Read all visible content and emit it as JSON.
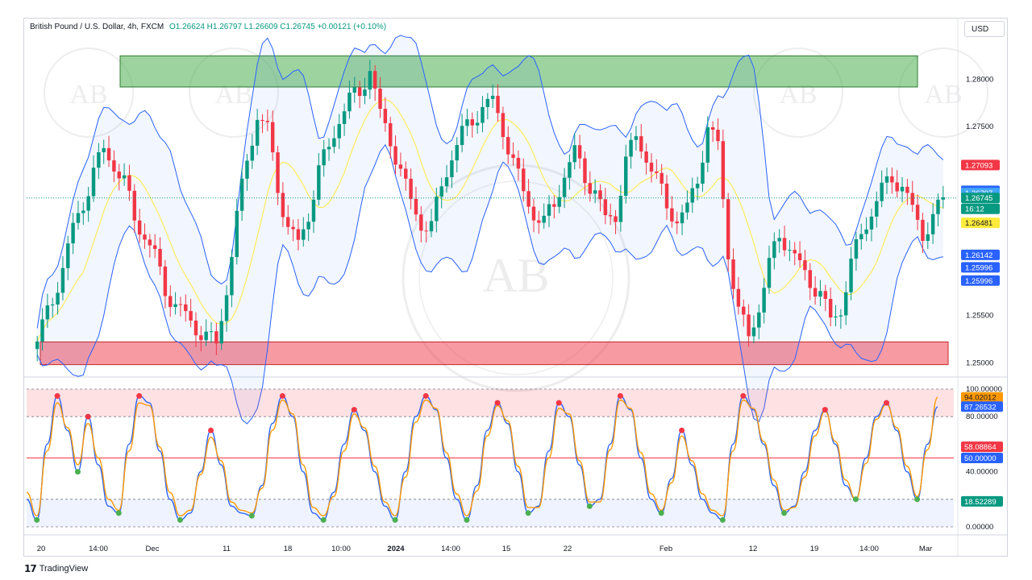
{
  "header": {
    "symbol": "British Pound / U.S. Dollar, 4h, FXCM",
    "ohlc": "O1.26624 H1.26797 L1.26609 C1.26745 +0.00121 (+0.10%)"
  },
  "currency_button": "USD",
  "footer_logo": "TradingView",
  "colors": {
    "up": "#089981",
    "down": "#f23645",
    "bb_band": "#2962ff",
    "bb_basis": "#ffeb3b",
    "stoch_k": "#2962ff",
    "stoch_d": "#ff9800",
    "supply_zone": "#4caf50",
    "demand_zone": "#f23645"
  },
  "chart_data": [
    {
      "type": "candlestick",
      "x_ticks": [
        "20",
        "14:00",
        "Dec",
        "11",
        "18",
        "10:00",
        "2024",
        "14:00",
        "15",
        "22",
        "Feb",
        "12",
        "19",
        "14:00",
        "Mar"
      ],
      "ylim": [
        1.249,
        1.285
      ],
      "y_ticks": [
        "1.28000",
        "1.27500",
        "1.25500",
        "1.25000"
      ],
      "price_badges": [
        {
          "label": "1.27093",
          "value": 1.27093,
          "bg": "#f23645",
          "fg": "#ffffff"
        },
        {
          "label": "1.26820",
          "value": 1.2682,
          "bg": "#2962ff",
          "fg": "#ffffff"
        },
        {
          "label": "1.26797",
          "value": 1.26797,
          "bg": "#42a5f5",
          "fg": "#ffffff"
        },
        {
          "label": "1.26745",
          "value": 1.26745,
          "bg": "#089981",
          "fg": "#ffffff"
        },
        {
          "label": "16:12",
          "value": 1.2663,
          "bg": "#089981",
          "fg": "#ffffff"
        },
        {
          "label": "1.26481",
          "value": 1.26481,
          "bg": "#ffeb3b",
          "fg": "#131722"
        },
        {
          "label": "1.26142",
          "value": 1.26142,
          "bg": "#2962ff",
          "fg": "#ffffff"
        },
        {
          "label": "1.25996",
          "value": 1.2601,
          "bg": "#2962ff",
          "fg": "#ffffff"
        },
        {
          "label": "1.25996",
          "value": 1.2587,
          "bg": "#2962ff",
          "fg": "#ffffff"
        }
      ],
      "zones": [
        {
          "type": "supply",
          "top": 1.2825,
          "bottom": 1.2792
        },
        {
          "type": "demand",
          "top": 1.2522,
          "bottom": 1.2498
        }
      ],
      "close_path": [
        1.251,
        1.2535,
        1.257,
        1.26,
        1.264,
        1.2672,
        1.27,
        1.2725,
        1.2712,
        1.2688,
        1.2655,
        1.2635,
        1.261,
        1.258,
        1.256,
        1.2548,
        1.254,
        1.2525,
        1.252,
        1.258,
        1.265,
        1.272,
        1.276,
        1.2745,
        1.269,
        1.264,
        1.2625,
        1.266,
        1.27,
        1.273,
        1.276,
        1.2775,
        1.279,
        1.281,
        1.276,
        1.274,
        1.27,
        1.267,
        1.265,
        1.264,
        1.269,
        1.272,
        1.274,
        1.276,
        1.277,
        1.2775,
        1.275,
        1.271,
        1.268,
        1.266,
        1.2645,
        1.267,
        1.27,
        1.272,
        1.27,
        1.268,
        1.265,
        1.266,
        1.271,
        1.274,
        1.272,
        1.269,
        1.267,
        1.265,
        1.266,
        1.27,
        1.2745,
        1.273,
        1.262,
        1.255,
        1.253,
        1.256,
        1.26,
        1.264,
        1.262,
        1.26,
        1.259,
        1.257,
        1.2545,
        1.256,
        1.26,
        1.264,
        1.266,
        1.268,
        1.27,
        1.2685,
        1.266,
        1.264,
        1.265,
        1.2674
      ]
    },
    {
      "type": "line",
      "name": "Stochastic",
      "ylim": [
        0,
        100
      ],
      "y_ticks": [
        "100.00000",
        "80.00000",
        "40.00000",
        "0.00000"
      ],
      "levels": [
        80,
        50,
        20
      ],
      "value_badges": [
        {
          "label": "94.02012",
          "value": 94.02,
          "bg": "#ff9800",
          "fg": "#131722"
        },
        {
          "label": "87.26532",
          "value": 87.27,
          "bg": "#2962ff",
          "fg": "#ffffff"
        },
        {
          "label": "58.08864",
          "value": 58.09,
          "bg": "#f23645",
          "fg": "#ffffff"
        },
        {
          "label": "50.00000",
          "value": 50.0,
          "bg": "#2962ff",
          "fg": "#ffffff"
        },
        {
          "label": "18.52289",
          "value": 18.52,
          "bg": "#089981",
          "fg": "#ffffff"
        }
      ],
      "series": [
        {
          "name": "%K",
          "color": "#2962ff",
          "values": [
            20,
            5,
            60,
            95,
            70,
            40,
            80,
            45,
            15,
            10,
            60,
            95,
            90,
            55,
            20,
            5,
            10,
            40,
            70,
            45,
            15,
            10,
            8,
            30,
            75,
            95,
            80,
            40,
            10,
            5,
            25,
            60,
            85,
            70,
            40,
            15,
            5,
            40,
            80,
            95,
            85,
            50,
            20,
            5,
            30,
            70,
            90,
            75,
            40,
            10,
            15,
            55,
            90,
            80,
            45,
            15,
            20,
            60,
            95,
            85,
            50,
            20,
            10,
            35,
            70,
            45,
            20,
            10,
            5,
            60,
            95,
            85,
            60,
            30,
            10,
            15,
            40,
            70,
            85,
            60,
            30,
            20,
            50,
            80,
            90,
            70,
            40,
            20,
            60,
            87
          ]
        },
        {
          "name": "%D",
          "color": "#ff9800",
          "values": [
            25,
            8,
            55,
            90,
            72,
            45,
            75,
            50,
            20,
            12,
            55,
            90,
            88,
            58,
            25,
            8,
            12,
            38,
            65,
            48,
            18,
            12,
            10,
            28,
            70,
            92,
            82,
            45,
            14,
            8,
            22,
            55,
            82,
            72,
            44,
            18,
            8,
            36,
            76,
            92,
            86,
            54,
            24,
            8,
            26,
            66,
            88,
            77,
            44,
            14,
            14,
            50,
            86,
            82,
            48,
            18,
            18,
            56,
            92,
            86,
            54,
            24,
            12,
            32,
            66,
            48,
            24,
            12,
            8,
            55,
            92,
            86,
            62,
            34,
            12,
            14,
            36,
            66,
            84,
            62,
            34,
            20,
            46,
            78,
            89,
            72,
            44,
            22,
            56,
            94
          ]
        }
      ]
    }
  ]
}
